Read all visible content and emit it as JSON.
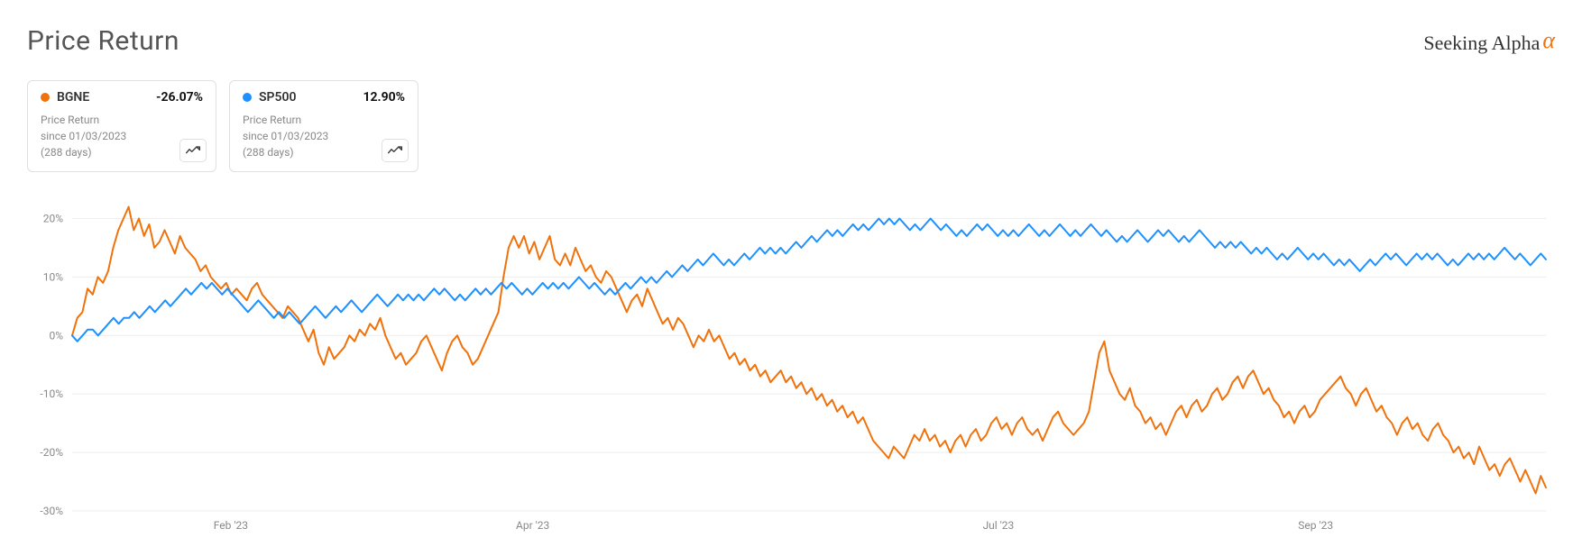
{
  "title": "Price Return",
  "brand": {
    "text": "Seeking Alpha",
    "accent_glyph": "α",
    "accent_color": "#f0720c"
  },
  "legend": [
    {
      "ticker": "BGNE",
      "return": "-26.07%",
      "subtitle": "Price Return",
      "since": "since 01/03/2023",
      "days": "(288 days)",
      "color": "#f0720c"
    },
    {
      "ticker": "SP500",
      "return": "12.90%",
      "subtitle": "Price Return",
      "since": "since 01/03/2023",
      "days": "(288 days)",
      "color": "#1e90ff"
    }
  ],
  "chart": {
    "type": "line",
    "background_color": "#ffffff",
    "grid_color": "#eeeeee",
    "yaxis": {
      "min": -30,
      "max": 25,
      "ticks": [
        -30,
        -20,
        -10,
        0,
        10,
        20
      ],
      "tick_labels": [
        "-30%",
        "-20%",
        "-10%",
        "0%",
        "10%",
        "20%"
      ],
      "label_fontsize": 12,
      "label_color": "#888888"
    },
    "xaxis": {
      "min": 0,
      "max": 288,
      "ticks": [
        31,
        90,
        181,
        243
      ],
      "tick_labels": [
        "Feb '23",
        "Apr '23",
        "Jul '23",
        "Sep '23"
      ],
      "label_fontsize": 12,
      "label_color": "#888888"
    },
    "line_width": 2,
    "series": [
      {
        "name": "BGNE",
        "color": "#f0720c",
        "values": [
          0,
          3,
          4,
          8,
          7,
          10,
          9,
          11,
          15,
          18,
          20,
          22,
          18,
          20,
          17,
          19,
          15,
          16,
          18,
          16,
          14,
          17,
          15,
          14,
          13,
          11,
          12,
          10,
          9,
          8,
          9,
          7,
          8,
          7,
          6,
          8,
          9,
          7,
          6,
          5,
          4,
          3,
          5,
          4,
          3,
          1,
          -1,
          1,
          -3,
          -5,
          -2,
          -4,
          -3,
          -2,
          0,
          -1,
          1,
          0,
          2,
          1,
          3,
          0,
          -2,
          -4,
          -3,
          -5,
          -4,
          -3,
          -1,
          0,
          -2,
          -4,
          -6,
          -3,
          -1,
          0,
          -2,
          -3,
          -5,
          -4,
          -2,
          0,
          2,
          4,
          10,
          15,
          17,
          15,
          17,
          14,
          16,
          13,
          15,
          17,
          13,
          12,
          14,
          12,
          15,
          13,
          11,
          12,
          10,
          9,
          11,
          10,
          8,
          6,
          4,
          6,
          7,
          5,
          8,
          6,
          4,
          2,
          3,
          1,
          3,
          2,
          0,
          -2,
          0,
          -1,
          1,
          -1,
          0,
          -2,
          -4,
          -3,
          -5,
          -4,
          -6,
          -5,
          -7,
          -6,
          -8,
          -7,
          -6,
          -8,
          -7,
          -9,
          -8,
          -10,
          -9,
          -11,
          -10,
          -12,
          -11,
          -13,
          -12,
          -14,
          -13,
          -15,
          -14,
          -16,
          -18,
          -19,
          -20,
          -21,
          -19,
          -20,
          -21,
          -19,
          -17,
          -18,
          -16,
          -18,
          -17,
          -19,
          -18,
          -20,
          -18,
          -17,
          -19,
          -17,
          -16,
          -18,
          -17,
          -15,
          -14,
          -16,
          -15,
          -17,
          -15,
          -14,
          -16,
          -17,
          -16,
          -18,
          -16,
          -14,
          -13,
          -15,
          -16,
          -17,
          -16,
          -15,
          -13,
          -8,
          -3,
          -1,
          -6,
          -8,
          -10,
          -11,
          -9,
          -12,
          -13,
          -15,
          -14,
          -16,
          -15,
          -17,
          -15,
          -13,
          -12,
          -14,
          -12,
          -11,
          -13,
          -12,
          -10,
          -9,
          -11,
          -10,
          -8,
          -7,
          -9,
          -7,
          -6,
          -8,
          -10,
          -9,
          -11,
          -12,
          -14,
          -13,
          -15,
          -13,
          -12,
          -14,
          -13,
          -11,
          -10,
          -9,
          -8,
          -7,
          -9,
          -10,
          -12,
          -10,
          -9,
          -11,
          -13,
          -12,
          -14,
          -15,
          -17,
          -15,
          -14,
          -16,
          -15,
          -17,
          -18,
          -16,
          -15,
          -17,
          -18,
          -20,
          -19,
          -21,
          -20,
          -22,
          -19,
          -21,
          -23,
          -22,
          -24,
          -22,
          -21,
          -23,
          -25,
          -23,
          -25,
          -27,
          -24,
          -26
        ]
      },
      {
        "name": "SP500",
        "color": "#1e90ff",
        "values": [
          0,
          -1,
          0,
          1,
          1,
          0,
          1,
          2,
          3,
          2,
          3,
          3,
          4,
          3,
          4,
          5,
          4,
          5,
          6,
          5,
          6,
          7,
          8,
          7,
          8,
          9,
          8,
          9,
          8,
          7,
          8,
          7,
          6,
          5,
          4,
          5,
          6,
          5,
          4,
          3,
          4,
          3,
          4,
          3,
          2,
          3,
          4,
          5,
          4,
          3,
          4,
          5,
          4,
          5,
          6,
          5,
          4,
          5,
          6,
          7,
          6,
          5,
          6,
          7,
          6,
          7,
          6,
          7,
          6,
          7,
          8,
          7,
          8,
          7,
          6,
          7,
          6,
          7,
          8,
          7,
          8,
          7,
          8,
          9,
          8,
          9,
          8,
          7,
          8,
          7,
          8,
          9,
          8,
          9,
          8,
          9,
          8,
          9,
          10,
          9,
          8,
          9,
          8,
          7,
          8,
          7,
          8,
          9,
          8,
          9,
          10,
          9,
          10,
          9,
          10,
          11,
          10,
          11,
          12,
          11,
          12,
          13,
          12,
          13,
          14,
          13,
          12,
          13,
          12,
          13,
          14,
          13,
          14,
          15,
          14,
          15,
          14,
          15,
          14,
          15,
          16,
          15,
          16,
          17,
          16,
          17,
          18,
          17,
          18,
          17,
          18,
          19,
          18,
          19,
          18,
          19,
          20,
          19,
          20,
          19,
          20,
          19,
          18,
          19,
          18,
          19,
          20,
          19,
          18,
          19,
          18,
          17,
          18,
          17,
          18,
          19,
          18,
          19,
          18,
          17,
          18,
          17,
          18,
          17,
          18,
          19,
          18,
          17,
          18,
          17,
          18,
          19,
          18,
          17,
          18,
          17,
          18,
          19,
          18,
          17,
          18,
          17,
          16,
          17,
          16,
          17,
          18,
          17,
          16,
          17,
          18,
          17,
          18,
          17,
          16,
          17,
          16,
          17,
          18,
          17,
          16,
          15,
          16,
          15,
          16,
          15,
          16,
          15,
          14,
          15,
          14,
          15,
          14,
          13,
          14,
          13,
          14,
          15,
          14,
          13,
          14,
          13,
          14,
          13,
          12,
          13,
          12,
          13,
          12,
          11,
          12,
          13,
          12,
          13,
          14,
          13,
          14,
          13,
          12,
          13,
          14,
          13,
          14,
          13,
          14,
          13,
          12,
          13,
          12,
          13,
          14,
          13,
          14,
          13,
          14,
          13,
          14,
          15,
          14,
          13,
          14,
          13,
          12,
          13,
          14,
          13
        ]
      }
    ]
  }
}
